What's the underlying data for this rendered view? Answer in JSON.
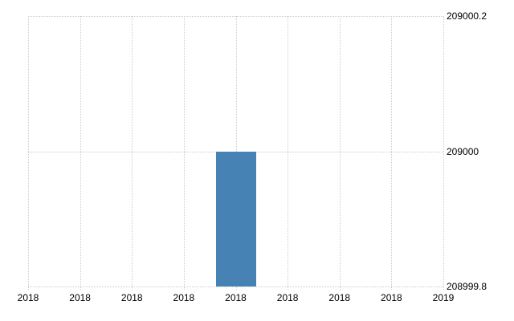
{
  "chart_data": {
    "type": "bar",
    "x_tick_labels": [
      "2018",
      "2018",
      "2018",
      "2018",
      "2018",
      "2018",
      "2018",
      "2018",
      "2019"
    ],
    "y_tick_labels": [
      "209000.2",
      "209000",
      "208999.8"
    ],
    "y_tick_values": [
      209000.2,
      209000,
      208999.8
    ],
    "ylim": [
      208999.8,
      209000.2
    ],
    "series": [
      {
        "name": "value",
        "values": [
          null,
          null,
          null,
          null,
          209000,
          null,
          null,
          null,
          null
        ]
      }
    ],
    "bar_color": "#4682B4",
    "grid_color": "#cccccc",
    "axis_text_color": "#000000",
    "grid": true,
    "legend": "none",
    "y_axis_position": "right"
  }
}
